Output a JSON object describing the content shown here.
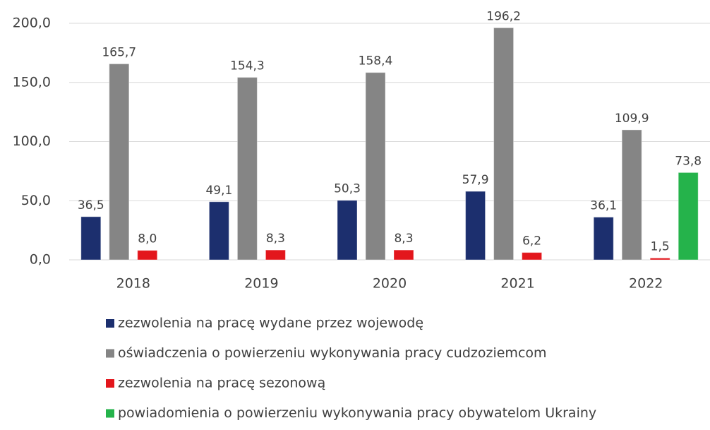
{
  "chart_data": {
    "type": "bar",
    "categories": [
      "2018",
      "2019",
      "2020",
      "2021",
      "2022"
    ],
    "series": [
      {
        "name": "zezwolenia na pracę wydane przez wojewodę",
        "color": "#1c2f6e",
        "values": [
          36.5,
          49.1,
          50.3,
          57.9,
          36.1
        ],
        "value_labels": [
          "36,5",
          "49,1",
          "50,3",
          "57,9",
          "36,1"
        ]
      },
      {
        "name": "oświadczenia o powierzeniu wykonywania pracy cudzoziemcom",
        "color": "#858585",
        "values": [
          165.7,
          154.3,
          158.4,
          196.2,
          109.9
        ],
        "value_labels": [
          "165,7",
          "154,3",
          "158,4",
          "196,2",
          "109,9"
        ]
      },
      {
        "name": "zezwolenia na pracę sezonową",
        "color": "#e3161c",
        "values": [
          8.0,
          8.3,
          8.3,
          6.2,
          1.5
        ],
        "value_labels": [
          "8,0",
          "8,3",
          "8,3",
          "6,2",
          "1,5"
        ]
      },
      {
        "name": "powiadomienia o powierzeniu wykonywania pracy obywatelom Ukrainy",
        "color": "#25b34b",
        "values": [
          null,
          null,
          null,
          null,
          73.8
        ],
        "value_labels": [
          null,
          null,
          null,
          null,
          "73,8"
        ]
      }
    ],
    "ylim": [
      0,
      200
    ],
    "yticks": [
      {
        "value": 0,
        "label": "0,0"
      },
      {
        "value": 50,
        "label": "50,0"
      },
      {
        "value": 100,
        "label": "100,0"
      },
      {
        "value": 150,
        "label": "150,0"
      },
      {
        "value": 200,
        "label": "200,0"
      }
    ],
    "grid": true,
    "legend": "bottom"
  }
}
